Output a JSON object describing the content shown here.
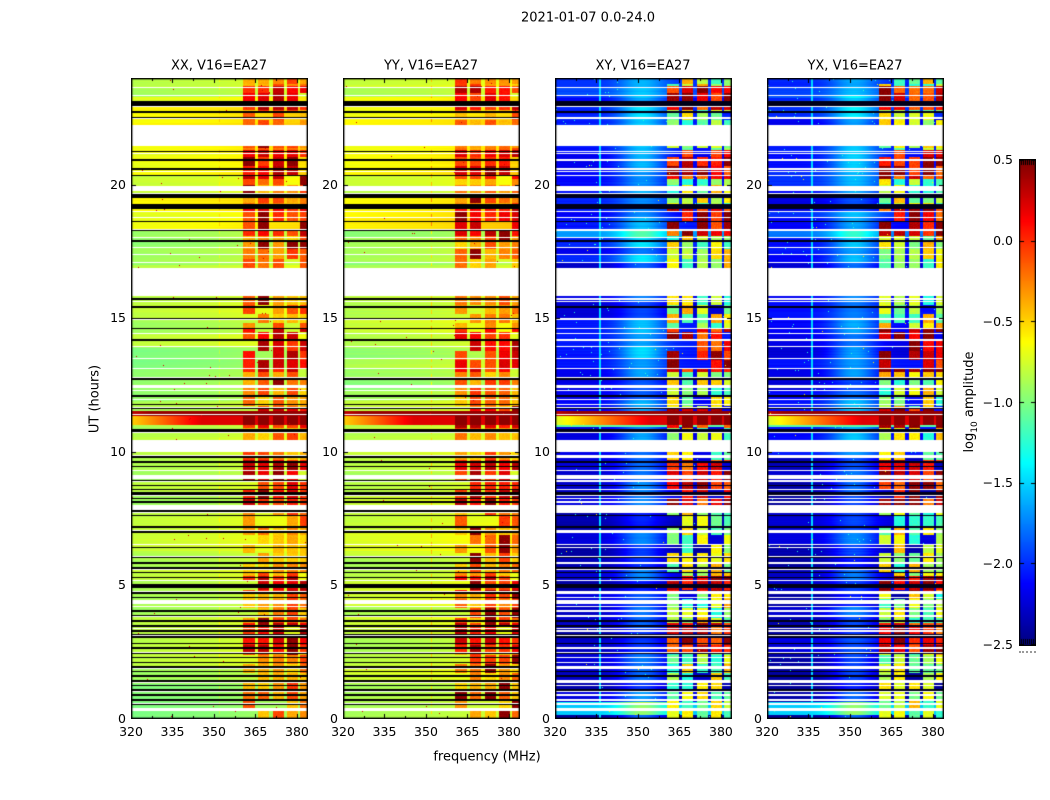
{
  "chart_data": {
    "type": "heatmap",
    "suptitle": "2021-01-07 0.0-24.0",
    "xlabel": "frequency (MHz)",
    "ylabel": "UT (hours)",
    "xlim": [
      320,
      384
    ],
    "ylim": [
      0,
      24
    ],
    "xticks": [
      320,
      335,
      350,
      365,
      380
    ],
    "xminorticks": [
      327.5,
      342.5,
      357.5,
      372.5
    ],
    "yticks": [
      0,
      5,
      10,
      15,
      20
    ],
    "grid": false,
    "panels": [
      {
        "title": "XX, V16=EA27",
        "hand": "parallel"
      },
      {
        "title": "YY, V16=EA27",
        "hand": "parallel"
      },
      {
        "title": "XY, V16=EA27",
        "hand": "cross"
      },
      {
        "title": "YX, V16=EA27",
        "hand": "cross"
      }
    ],
    "colorbar": {
      "label_prefix": "log",
      "label_sub": "10",
      "label_suffix": " amplitude",
      "ticks": [
        0.5,
        0.0,
        -0.5,
        -1.0,
        -1.5,
        -2.0,
        -2.5
      ],
      "vmin": -2.5,
      "vmax": 0.5,
      "cmap": "jet"
    },
    "features": {
      "levels": {
        "parallel_background": -0.86,
        "cross_background": -2.32,
        "solar_core": 0.44
      },
      "data_gaps_ut": [
        [
          0.3,
          0.4
        ],
        [
          4.3,
          4.45
        ],
        [
          7.83,
          8.0
        ],
        [
          9.0,
          9.12
        ],
        [
          10.0,
          10.45
        ],
        [
          12.38,
          12.5
        ],
        [
          15.85,
          16.9
        ],
        [
          19.78,
          19.95
        ],
        [
          21.5,
          22.25
        ]
      ],
      "flagged_black_bands_ut": [
        [
          3.05,
          3.2
        ],
        [
          4.9,
          5.05
        ],
        [
          8.35,
          8.5
        ],
        [
          10.74,
          10.86
        ],
        [
          19.1,
          19.28
        ],
        [
          19.52,
          19.7
        ],
        [
          22.95,
          23.15
        ]
      ],
      "flagged_thin_lines_ut": [
        0.55,
        0.72,
        0.9,
        1.08,
        1.25,
        1.42,
        1.6,
        1.78,
        1.95,
        2.12,
        2.3,
        2.48,
        2.65,
        2.82,
        3.3,
        3.48,
        3.66,
        3.85,
        4.05,
        4.55,
        4.72,
        5.3,
        5.48,
        5.65,
        5.85,
        6.05,
        6.42,
        7.0,
        7.2,
        7.62,
        7.78,
        7.95,
        8.12,
        8.25,
        8.6,
        8.75,
        8.9,
        9.3,
        9.45,
        9.62,
        9.8,
        11.62,
        11.78,
        12.1,
        12.72,
        13.12,
        13.5,
        14.2,
        14.62,
        15.0,
        15.42,
        15.72,
        17.9,
        18.32,
        18.62,
        20.35,
        20.6,
        20.92,
        21.25,
        22.5,
        22.72,
        23.35
      ],
      "solar_band_ut": {
        "core": [
          11.33,
          11.54
        ],
        "wing": [
          11.0,
          11.33
        ]
      },
      "rfi_columns_mhz": [
        [
          360.5,
          364.8
        ],
        [
          365.9,
          369.9
        ],
        [
          371.3,
          375.3
        ],
        [
          376.4,
          380.4
        ],
        [
          381.0,
          384.0
        ]
      ],
      "rfi_active_ut": [
        [
          2.5,
          3.6
        ],
        [
          4.7,
          5.35
        ],
        [
          8.0,
          9.7
        ],
        [
          10.9,
          11.62
        ],
        [
          13.0,
          14.65
        ],
        [
          18.1,
          19.1
        ],
        [
          20.2,
          21.3
        ],
        [
          22.8,
          23.7
        ]
      ],
      "parallel_warm_ut": [
        [
          18.35,
          19.52
        ],
        [
          20.35,
          23.3
        ]
      ],
      "parallel_green_ut": [
        [
          17.0,
          18.3
        ],
        [
          11.9,
          13.9
        ],
        [
          0.0,
          1.3
        ]
      ],
      "parallel_vline_mhz": 351.9,
      "cross_vline_mhz": 336.3,
      "cross_bright_swath_mhz": [
        344,
        358
      ]
    }
  }
}
